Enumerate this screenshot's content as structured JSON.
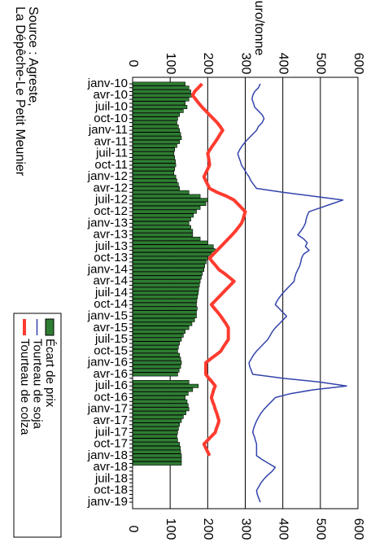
{
  "chart_data": {
    "type": "bar",
    "ylabel": "euro/tonne",
    "source": [
      "Source : Agreste,",
      "La Dépêche-Le Petit Meunier"
    ],
    "ylim": [
      0,
      600
    ],
    "yticks": [
      0,
      100,
      200,
      300,
      400,
      500,
      600
    ],
    "grid": true,
    "categories": [
      "janv-10",
      null,
      null,
      "avr-10",
      null,
      null,
      "juil-10",
      null,
      null,
      "oct-10",
      null,
      null,
      "janv-11",
      null,
      null,
      "avr-11",
      null,
      null,
      "juil-11",
      null,
      null,
      "oct-11",
      null,
      null,
      "janv-12",
      null,
      null,
      "avr-12",
      null,
      null,
      "juil-12",
      null,
      null,
      "oct-12",
      null,
      null,
      "janv-13",
      null,
      null,
      "avr-13",
      null,
      null,
      "juil-13",
      null,
      null,
      "oct-13",
      null,
      null,
      "janv-14",
      null,
      null,
      "avr-14",
      null,
      null,
      "juil-14",
      null,
      null,
      "oct-14",
      null,
      null,
      "janv-15",
      null,
      null,
      "avr-15",
      null,
      null,
      "juil-15",
      null,
      null,
      "oct-15",
      null,
      null,
      "janv-16",
      null,
      null,
      "avr-16",
      null,
      null,
      "juil-16",
      null,
      null,
      "oct-16",
      null,
      null,
      "janv-17",
      null,
      null,
      "avr-17",
      null,
      null,
      "juil-17",
      null,
      null,
      "oct-17",
      null,
      null,
      "janv-18",
      null,
      null,
      "avr-18",
      null,
      null,
      "juil-18",
      null,
      null,
      "oct-18",
      null,
      null,
      "janv-19"
    ],
    "series": [
      {
        "name": "Écart de prix",
        "type": "bar",
        "color": "#2e7d32",
        "values": [
          140,
          150,
          155,
          160,
          150,
          140,
          145,
          135,
          125,
          120,
          118,
          122,
          125,
          128,
          130,
          125,
          118,
          112,
          110,
          112,
          114,
          115,
          112,
          110,
          115,
          118,
          122,
          125,
          150,
          180,
          200,
          195,
          180,
          170,
          162,
          155,
          150,
          155,
          160,
          160,
          180,
          200,
          215,
          220,
          210,
          200,
          196,
          192,
          190,
          186,
          183,
          180,
          178,
          176,
          175,
          173,
          171,
          170,
          172,
          170,
          170,
          165,
          158,
          150,
          140,
          135,
          130,
          125,
          122,
          120,
          125,
          128,
          130,
          128,
          124,
          120,
          null,
          150,
          175,
          160,
          148,
          140,
          145,
          148,
          150,
          142,
          135,
          130,
          125,
          122,
          120,
          118,
          120,
          125,
          127,
          128,
          130,
          130,
          130,
          null,
          null,
          null,
          null,
          null,
          null,
          null,
          null,
          null,
          null
        ]
      },
      {
        "name": "Tourteau de soja",
        "type": "line",
        "color": "#3344aa",
        "values": [
          340,
          335,
          325,
          320,
          318,
          322,
          325,
          335,
          345,
          350,
          345,
          335,
          330,
          320,
          310,
          300,
          292,
          285,
          280,
          283,
          287,
          290,
          297,
          303,
          310,
          315,
          322,
          330,
          400,
          480,
          560,
          530,
          500,
          470,
          465,
          462,
          460,
          455,
          448,
          440,
          455,
          465,
          460,
          470,
          455,
          450,
          448,
          445,
          440,
          435,
          432,
          430,
          420,
          410,
          400,
          392,
          385,
          380,
          390,
          400,
          410,
          400,
          390,
          380,
          372,
          366,
          360,
          350,
          340,
          330,
          322,
          316,
          310,
          312,
          316,
          320,
          400,
          500,
          570,
          480,
          420,
          380,
          370,
          360,
          350,
          342,
          336,
          330,
          326,
          322,
          320,
          324,
          327,
          330,
          330,
          330,
          330,
          345,
          362,
          380,
          372,
          360,
          350,
          342,
          336,
          330,
          332,
          336,
          340
        ]
      },
      {
        "name": "Tourteau de colza",
        "type": "line",
        "color": "#ff3b2f",
        "values": [
          185,
          175,
          165,
          160,
          168,
          176,
          185,
          195,
          205,
          215,
          225,
          233,
          240,
          233,
          227,
          220,
          213,
          206,
          200,
          202,
          204,
          205,
          200,
          195,
          190,
          195,
          200,
          205,
          225,
          250,
          270,
          280,
          290,
          300,
          297,
          294,
          290,
          282,
          274,
          265,
          255,
          245,
          235,
          225,
          215,
          205,
          213,
          222,
          230,
          245,
          258,
          270,
          260,
          250,
          240,
          230,
          220,
          210,
          218,
          227,
          235,
          242,
          249,
          255,
          255,
          255,
          255,
          248,
          241,
          235,
          222,
          208,
          195,
          195,
          195,
          195,
          203,
          212,
          220,
          216,
          213,
          210,
          213,
          217,
          220,
          224,
          227,
          230,
          227,
          223,
          220,
          210,
          200,
          190,
          195,
          200,
          205,
          null,
          null,
          null,
          null,
          null,
          null,
          null,
          null,
          null,
          null,
          null,
          null
        ]
      }
    ]
  }
}
